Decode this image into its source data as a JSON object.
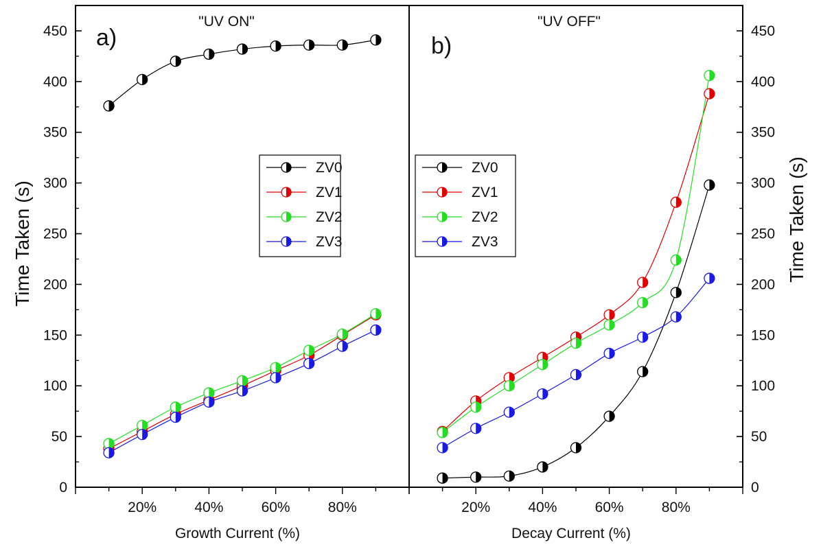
{
  "chart_data": [
    {
      "type": "line",
      "panel_label": "a)",
      "title": "\"UV ON\"",
      "xlabel": "Growth Current (%)",
      "ylabel": "Time Taken (s)",
      "x": [
        10,
        20,
        30,
        40,
        50,
        60,
        70,
        80,
        90
      ],
      "x_tick_labels": [
        "20%",
        "40%",
        "60%",
        "80%"
      ],
      "xlim": [
        0,
        100
      ],
      "ylim": [
        0,
        475
      ],
      "y_ticks": [
        0,
        50,
        100,
        150,
        200,
        250,
        300,
        350,
        400,
        450
      ],
      "grid": false,
      "legend_position": "middle-right",
      "series": [
        {
          "name": "ZV0",
          "color": "#000000",
          "values": [
            376,
            402,
            420,
            427,
            432,
            435,
            436,
            436,
            441
          ]
        },
        {
          "name": "ZV1",
          "color": "#e00000",
          "values": [
            38,
            55,
            72,
            86,
            100,
            115,
            130,
            150,
            170
          ]
        },
        {
          "name": "ZV2",
          "color": "#22dd22",
          "values": [
            43,
            61,
            79,
            93,
            105,
            118,
            135,
            151,
            171
          ]
        },
        {
          "name": "ZV3",
          "color": "#1a1ae6",
          "values": [
            34,
            52,
            69,
            84,
            95,
            108,
            122,
            139,
            155
          ]
        }
      ]
    },
    {
      "type": "line",
      "panel_label": "b)",
      "title": "\"UV OFF\"",
      "xlabel": "Decay Current (%)",
      "ylabel": "Time Taken (s)",
      "x": [
        10,
        20,
        30,
        40,
        50,
        60,
        70,
        80,
        90
      ],
      "x_tick_labels": [
        "20%",
        "40%",
        "60%",
        "80%"
      ],
      "xlim": [
        0,
        100
      ],
      "ylim": [
        0,
        475
      ],
      "y_ticks": [
        0,
        50,
        100,
        150,
        200,
        250,
        300,
        350,
        400,
        450
      ],
      "grid": false,
      "legend_position": "middle-left",
      "series": [
        {
          "name": "ZV0",
          "color": "#000000",
          "values": [
            9,
            10,
            11,
            20,
            39,
            70,
            114,
            192,
            298
          ]
        },
        {
          "name": "ZV1",
          "color": "#e00000",
          "values": [
            55,
            85,
            108,
            128,
            148,
            170,
            202,
            281,
            388
          ]
        },
        {
          "name": "ZV2",
          "color": "#22dd22",
          "values": [
            54,
            79,
            100,
            121,
            142,
            160,
            182,
            224,
            406
          ]
        },
        {
          "name": "ZV3",
          "color": "#1a1ae6",
          "values": [
            39,
            58,
            74,
            92,
            111,
            132,
            148,
            168,
            206
          ]
        }
      ]
    }
  ]
}
